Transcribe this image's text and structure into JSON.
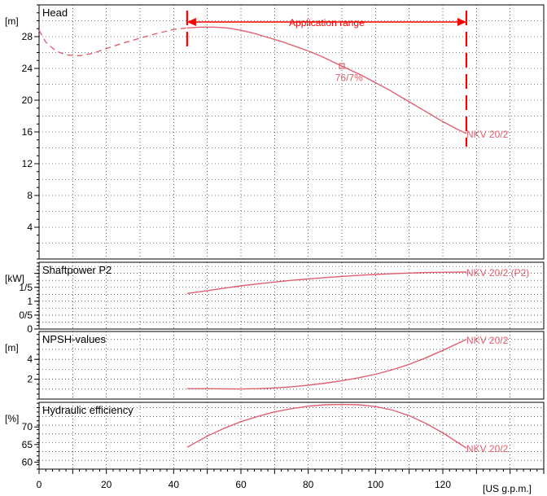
{
  "colors": {
    "curve": "#e06070",
    "range": "#ff0000",
    "grid": "#000000"
  },
  "chart_data": {
    "type": "line",
    "x_unit": "[US g.p.m.]",
    "x_range": [
      0,
      150
    ],
    "x_ticks": [
      0,
      20,
      40,
      60,
      80,
      100,
      120
    ],
    "application_range": {
      "label": "Application range",
      "x": [
        44,
        127
      ]
    },
    "panels": [
      {
        "id": "head",
        "title": "Head",
        "unit": "[m]",
        "ylim": [
          0,
          32
        ],
        "y_ticks": [
          4,
          8,
          12,
          16,
          20,
          24,
          28
        ],
        "series": [
          {
            "name": "NKV 20/2",
            "style": "dashed",
            "x": [
              0,
              2,
              5,
              8,
              12,
              16,
              20,
              25,
              30,
              35,
              40,
              44
            ],
            "y": [
              28.8,
              27.3,
              26.2,
              25.7,
              25.6,
              25.9,
              26.5,
              27.2,
              27.8,
              28.4,
              28.9,
              29.1
            ]
          },
          {
            "name": "NKV 20/2",
            "style": "solid",
            "x": [
              44,
              48,
              52,
              56,
              60,
              64,
              68,
              72,
              76,
              80,
              84,
              88,
              92,
              96,
              100,
              104,
              108,
              112,
              116,
              120,
              124,
              127
            ],
            "y": [
              29.1,
              29.2,
              29.2,
              29.1,
              28.8,
              28.4,
              27.9,
              27.4,
              26.8,
              26.2,
              25.5,
              24.7,
              23.9,
              23.1,
              22.2,
              21.3,
              20.3,
              19.3,
              18.3,
              17.3,
              16.4,
              15.8
            ]
          }
        ],
        "annotations": [
          {
            "text": "NKV 20/2",
            "x": 127,
            "y": 15.8
          },
          {
            "text": "76/7%",
            "x": 88,
            "y": 22.9
          }
        ],
        "marker": {
          "x": 90,
          "y": 24.3
        }
      },
      {
        "id": "power",
        "title": "Shaftpower P2",
        "unit": "[kW]",
        "ylim": [
          0,
          2.4
        ],
        "y_ticks": [
          0,
          0.5,
          1,
          1.5,
          2
        ],
        "y_tick_labels": [
          "0",
          "0/5",
          "1",
          "1/5",
          ""
        ],
        "series": [
          {
            "name": "NKV 20/2 (P2)",
            "style": "solid",
            "x": [
              44,
              50,
              55,
              60,
              65,
              70,
              75,
              80,
              85,
              90,
              95,
              100,
              105,
              110,
              115,
              120,
              127
            ],
            "y": [
              1.28,
              1.38,
              1.47,
              1.55,
              1.62,
              1.69,
              1.75,
              1.8,
              1.85,
              1.89,
              1.93,
              1.96,
              1.99,
              2.01,
              2.03,
              2.04,
              2.05
            ]
          }
        ],
        "annotations": [
          {
            "text": "NKV 20/2 (P2)",
            "x": 127,
            "y": 2.05
          }
        ]
      },
      {
        "id": "npsh",
        "title": "NPSH-values",
        "unit": "[m]",
        "ylim": [
          0,
          6.8
        ],
        "y_ticks": [
          2,
          4
        ],
        "series": [
          {
            "name": "NKV 20/2",
            "style": "solid",
            "x": [
              44,
              50,
              55,
              60,
              65,
              70,
              75,
              80,
              85,
              90,
              95,
              100,
              105,
              110,
              115,
              120,
              127
            ],
            "y": [
              1.05,
              1.05,
              1.03,
              1.02,
              1.05,
              1.12,
              1.24,
              1.4,
              1.6,
              1.85,
              2.15,
              2.5,
              2.95,
              3.5,
              4.15,
              4.9,
              6.0
            ]
          }
        ],
        "annotations": [
          {
            "text": "NKV 20/2",
            "x": 127,
            "y": 6.0
          }
        ]
      },
      {
        "id": "efficiency",
        "title": "Hydraulic efficiency",
        "unit": "[%]",
        "ylim": [
          58,
          77
        ],
        "y_ticks": [
          60,
          65,
          70
        ],
        "series": [
          {
            "name": "NKV 20/2",
            "style": "solid",
            "x": [
              44,
              50,
              55,
              60,
              65,
              70,
              75,
              80,
              85,
              90,
              95,
              100,
              105,
              110,
              115,
              120,
              127
            ],
            "y": [
              64.2,
              67.4,
              69.6,
              71.5,
              73.0,
              74.3,
              75.2,
              75.9,
              76.3,
              76.4,
              76.3,
              75.8,
              74.8,
              73.2,
              71.0,
              68.3,
              64.0
            ]
          }
        ],
        "annotations": [
          {
            "text": "NKV 20/2",
            "x": 127,
            "y": 64.0
          }
        ]
      }
    ]
  }
}
